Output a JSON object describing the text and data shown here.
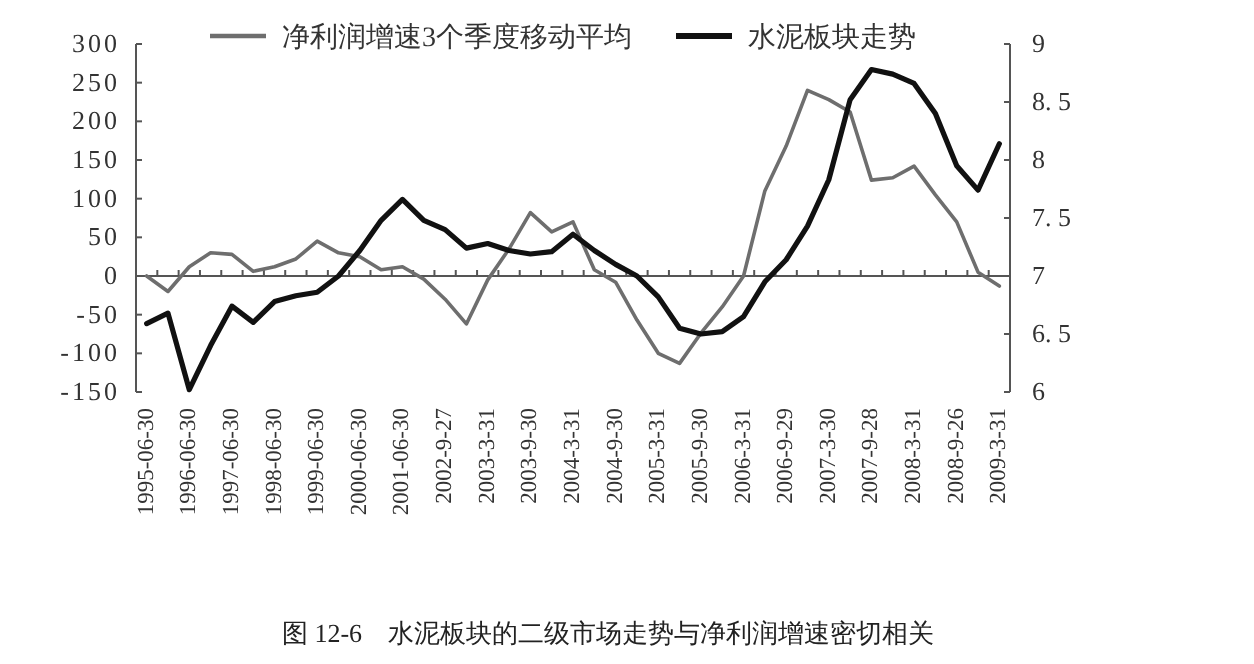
{
  "chart_data": {
    "type": "line",
    "title": "图 12-6　水泥板块的二级市场走势与净利润增速密切相关",
    "categories": [
      "1995-06-30",
      null,
      "1996-06-30",
      null,
      "1997-06-30",
      null,
      "1998-06-30",
      null,
      "1999-06-30",
      null,
      "2000-06-30",
      null,
      "2001-06-30",
      null,
      "2002-9-27",
      null,
      "2003-3-31",
      null,
      "2003-9-30",
      null,
      "2004-3-31",
      null,
      "2004-9-30",
      null,
      "2005-3-31",
      null,
      "2005-9-30",
      null,
      "2006-3-31",
      null,
      "2006-9-29",
      null,
      "2007-3-30",
      null,
      "2007-9-28",
      null,
      "2008-3-31",
      null,
      "2008-9-26",
      null,
      "2009-3-31"
    ],
    "series": [
      {
        "name": "净利润增速3个季度移动平均",
        "color": "#6e6e6e",
        "values": [
          0,
          -20,
          12,
          30,
          28,
          6,
          12,
          22,
          45,
          30,
          25,
          8,
          12,
          -4,
          -30,
          -62,
          -5,
          35,
          82,
          57,
          70,
          8,
          -8,
          -57,
          -100,
          -113,
          -74,
          -40,
          0,
          110,
          168,
          240,
          228,
          212,
          124,
          127,
          142,
          105,
          70,
          5,
          -13
        ]
      },
      {
        "name": "水泥板块走势",
        "color": "#111111",
        "axis": "y2",
        "values": [
          6.59,
          6.68,
          6.02,
          6.4,
          6.74,
          6.6,
          6.78,
          6.83,
          6.86,
          7.0,
          7.22,
          7.48,
          7.66,
          7.48,
          7.4,
          7.24,
          7.28,
          7.22,
          7.19,
          7.21,
          7.36,
          7.22,
          7.1,
          7.0,
          6.82,
          6.55,
          6.5,
          6.52,
          6.65,
          6.95,
          7.14,
          7.43,
          7.83,
          8.52,
          8.78,
          8.74,
          8.66,
          8.4,
          7.95,
          7.74,
          8.14
        ]
      }
    ],
    "ylim": [
      -150,
      300
    ],
    "yticks": [
      -150,
      -100,
      -50,
      0,
      50,
      100,
      150,
      200,
      250,
      300
    ],
    "y2lim": [
      6,
      9
    ],
    "y2ticks": [
      6,
      {
        "value": 6.5,
        "label": "6. 5"
      },
      7,
      {
        "value": 7.5,
        "label": "7. 5"
      },
      8,
      {
        "value": 8.5,
        "label": "8. 5"
      },
      9
    ],
    "legend": "top",
    "marker": "none",
    "line_style": "solid"
  }
}
